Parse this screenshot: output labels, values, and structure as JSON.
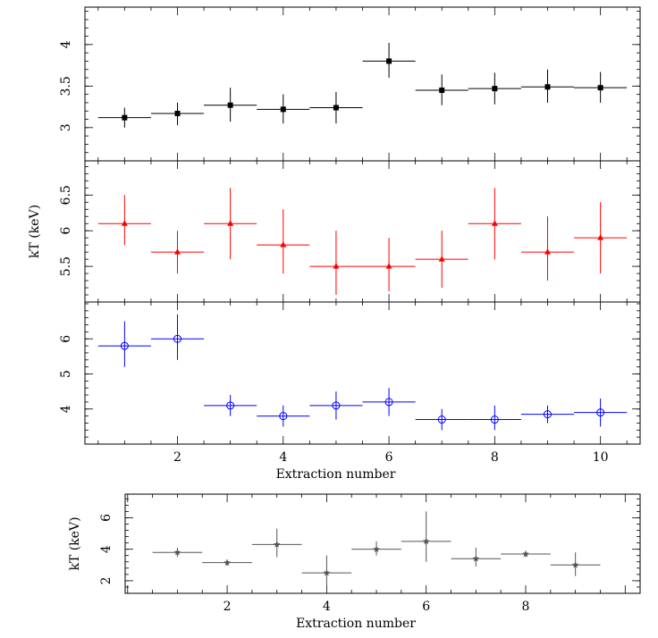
{
  "chart_data": [
    {
      "type": "scatter",
      "panel": "top",
      "color": "#000000",
      "marker": "filled-square",
      "xlim": [
        0.25,
        10.75
      ],
      "ylim": [
        2.6,
        4.45
      ],
      "yticks": [
        "3",
        "3.5",
        "4"
      ],
      "ytick_values": [
        3,
        3.5,
        4
      ],
      "ylabel": "",
      "xlabel": "",
      "points": [
        {
          "x": 1,
          "y": 3.12,
          "ylo": 3.0,
          "yhi": 3.24
        },
        {
          "x": 2,
          "y": 3.17,
          "ylo": 3.03,
          "yhi": 3.3
        },
        {
          "x": 3,
          "y": 3.27,
          "ylo": 3.07,
          "yhi": 3.48
        },
        {
          "x": 4,
          "y": 3.22,
          "ylo": 3.05,
          "yhi": 3.4
        },
        {
          "x": 5,
          "y": 3.24,
          "ylo": 3.05,
          "yhi": 3.43
        },
        {
          "x": 6,
          "y": 3.8,
          "ylo": 3.6,
          "yhi": 4.02
        },
        {
          "x": 7,
          "y": 3.45,
          "ylo": 3.27,
          "yhi": 3.64
        },
        {
          "x": 8,
          "y": 3.47,
          "ylo": 3.28,
          "yhi": 3.66
        },
        {
          "x": 9,
          "y": 3.49,
          "ylo": 3.3,
          "yhi": 3.7
        },
        {
          "x": 10,
          "y": 3.48,
          "ylo": 3.3,
          "yhi": 3.67
        }
      ]
    },
    {
      "type": "scatter",
      "panel": "middle",
      "color": "#ff0000",
      "marker": "filled-triangle",
      "xlim": [
        0.25,
        10.75
      ],
      "ylim": [
        5.0,
        6.98
      ],
      "yticks": [
        "5.5",
        "6",
        "6.5"
      ],
      "ytick_values": [
        5.5,
        6,
        6.5
      ],
      "ylabel": "kT (keV)",
      "xlabel": "",
      "points": [
        {
          "x": 1,
          "y": 6.1,
          "ylo": 5.8,
          "yhi": 6.5
        },
        {
          "x": 2,
          "y": 5.7,
          "ylo": 5.4,
          "yhi": 6.0
        },
        {
          "x": 3,
          "y": 6.1,
          "ylo": 5.6,
          "yhi": 6.6
        },
        {
          "x": 4,
          "y": 5.8,
          "ylo": 5.4,
          "yhi": 6.3
        },
        {
          "x": 5,
          "y": 5.5,
          "ylo": 5.1,
          "yhi": 6.0
        },
        {
          "x": 6,
          "y": 5.5,
          "ylo": 5.15,
          "yhi": 5.9
        },
        {
          "x": 7,
          "y": 5.6,
          "ylo": 5.2,
          "yhi": 6.0
        },
        {
          "x": 8,
          "y": 6.1,
          "ylo": 5.6,
          "yhi": 6.6
        },
        {
          "x": 9,
          "y": 5.7,
          "ylo": 5.3,
          "yhi": 6.2
        },
        {
          "x": 10,
          "y": 5.9,
          "ylo": 5.4,
          "yhi": 6.4
        }
      ]
    },
    {
      "type": "scatter",
      "panel": "bottom-of-stack",
      "color": "#0000ff",
      "marker": "open-circle",
      "xlim": [
        0.25,
        10.75
      ],
      "ylim": [
        3.0,
        7.05
      ],
      "yticks": [
        "4",
        "5",
        "6"
      ],
      "ytick_values": [
        4,
        5,
        6
      ],
      "xticks": [
        "2",
        "4",
        "6",
        "8",
        "10"
      ],
      "xtick_values": [
        2,
        4,
        6,
        8,
        10
      ],
      "ylabel": "",
      "xlabel": "Extraction number",
      "points": [
        {
          "x": 1,
          "y": 5.8,
          "ylo": 5.2,
          "yhi": 6.5
        },
        {
          "x": 2,
          "y": 6.0,
          "ylo": 5.4,
          "yhi": 6.7
        },
        {
          "x": 3,
          "y": 4.1,
          "ylo": 3.8,
          "yhi": 4.4
        },
        {
          "x": 4,
          "y": 3.8,
          "ylo": 3.5,
          "yhi": 4.1
        },
        {
          "x": 5,
          "y": 4.1,
          "ylo": 3.7,
          "yhi": 4.5
        },
        {
          "x": 6,
          "y": 4.2,
          "ylo": 3.8,
          "yhi": 4.6
        },
        {
          "x": 7,
          "y": 3.7,
          "ylo": 3.4,
          "yhi": 4.0
        },
        {
          "x": 8,
          "y": 3.7,
          "ylo": 3.4,
          "yhi": 4.1
        },
        {
          "x": 9,
          "y": 3.85,
          "ylo": 3.6,
          "yhi": 4.1
        },
        {
          "x": 10,
          "y": 3.9,
          "ylo": 3.5,
          "yhi": 4.3
        }
      ]
    },
    {
      "type": "scatter",
      "panel": "separate",
      "color": "#555555",
      "marker": "star",
      "xlim": [
        -0.05,
        10.3
      ],
      "ylim": [
        1.2,
        7.5
      ],
      "yticks": [
        "2",
        "4",
        "6"
      ],
      "ytick_values": [
        2,
        4,
        6
      ],
      "xticks": [
        "2",
        "4",
        "6",
        "8"
      ],
      "xtick_values": [
        2,
        4,
        6,
        8
      ],
      "ylabel": "kT (keV)",
      "xlabel": "Extraction number",
      "points": [
        {
          "x": 1,
          "y": 3.8,
          "ylo": 3.5,
          "yhi": 4.1
        },
        {
          "x": 2,
          "y": 3.15,
          "ylo": 2.95,
          "yhi": 3.35
        },
        {
          "x": 3,
          "y": 4.3,
          "ylo": 3.5,
          "yhi": 5.3
        },
        {
          "x": 4,
          "y": 2.5,
          "ylo": 1.7,
          "yhi": 3.6
        },
        {
          "x": 5,
          "y": 4.0,
          "ylo": 3.6,
          "yhi": 4.5
        },
        {
          "x": 6,
          "y": 4.5,
          "ylo": 3.2,
          "yhi": 6.4
        },
        {
          "x": 7,
          "y": 3.4,
          "ylo": 2.9,
          "yhi": 4.1
        },
        {
          "x": 8,
          "y": 3.7,
          "ylo": 3.5,
          "yhi": 3.9
        },
        {
          "x": 9,
          "y": 3.0,
          "ylo": 2.3,
          "yhi": 3.8
        }
      ]
    }
  ]
}
